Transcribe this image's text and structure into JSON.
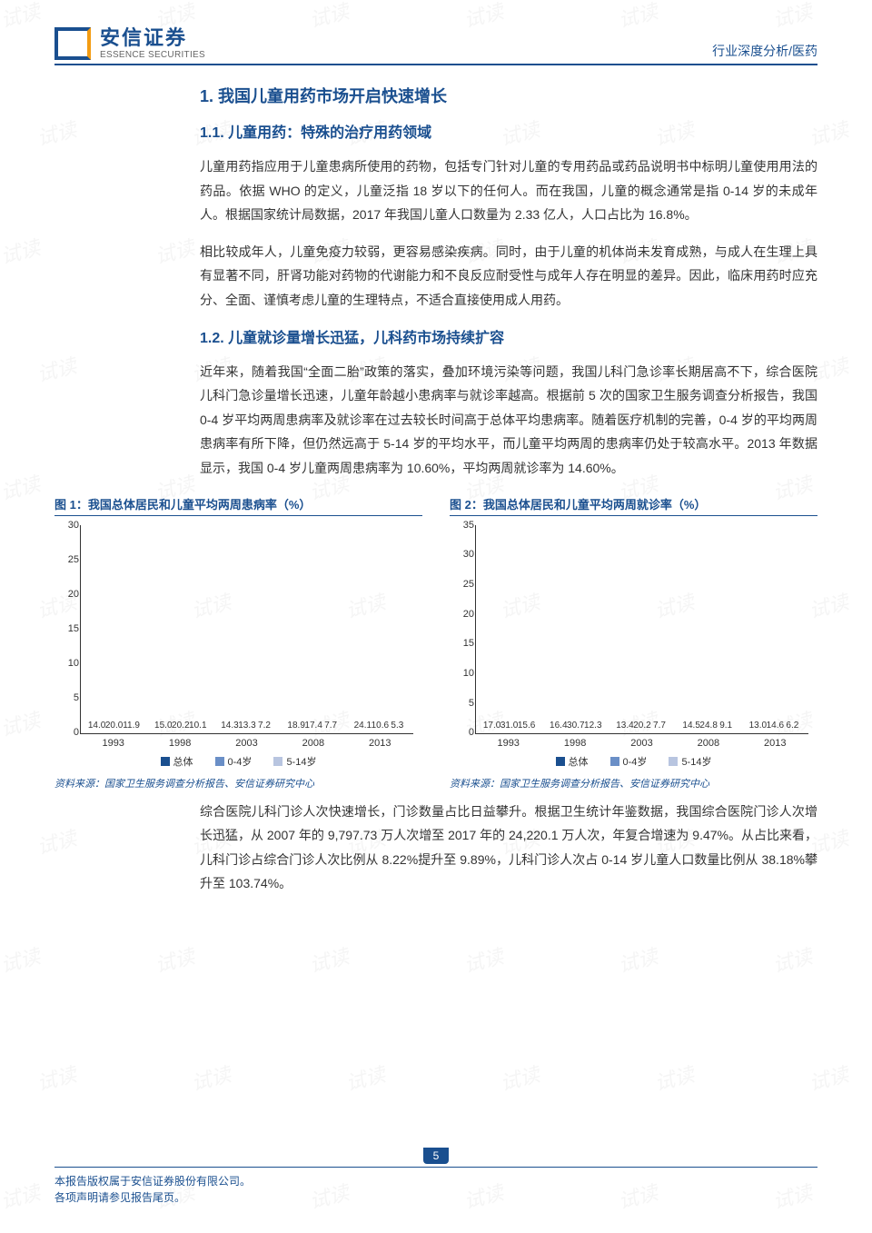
{
  "header": {
    "logo_cn": "安信证券",
    "logo_en": "ESSENCE SECURITIES",
    "doc_type": "行业深度分析/医药"
  },
  "section1": {
    "h1": "1. 我国儿童用药市场开启快速增长",
    "h2_1": "1.1. 儿童用药：特殊的治疗用药领域",
    "p1": "儿童用药指应用于儿童患病所使用的药物，包括专门针对儿童的专用药品或药品说明书中标明儿童使用用法的药品。依据 WHO 的定义，儿童泛指 18 岁以下的任何人。而在我国，儿童的概念通常是指 0-14 岁的未成年人。根据国家统计局数据，2017 年我国儿童人口数量为 2.33 亿人，人口占比为 16.8%。",
    "p2": "相比较成年人，儿童免疫力较弱，更容易感染疾病。同时，由于儿童的机体尚未发育成熟，与成人在生理上具有显著不同，肝肾功能对药物的代谢能力和不良反应耐受性与成年人存在明显的差异。因此，临床用药时应充分、全面、谨慎考虑儿童的生理特点，不适合直接使用成人用药。",
    "h2_2": "1.2. 儿童就诊量增长迅猛，儿科药市场持续扩容",
    "p3": "近年来，随着我国“全面二胎”政策的落实，叠加环境污染等问题，我国儿科门急诊率长期居高不下，综合医院儿科门急诊量增长迅速，儿童年龄越小患病率与就诊率越高。根据前 5 次的国家卫生服务调查分析报告，我国 0-4 岁平均两周患病率及就诊率在过去较长时间高于总体平均患病率。随着医疗机制的完善，0-4 岁的平均两周患病率有所下降，但仍然远高于 5-14 岁的平均水平，而儿童平均两周的患病率仍处于较高水平。2013 年数据显示，我国 0-4 岁儿童两周患病率为 10.60%，平均两周就诊率为 14.60%。",
    "p4": "综合医院儿科门诊人次快速增长，门诊数量占比日益攀升。根据卫生统计年鉴数据，我国综合医院门诊人次增长迅猛，从 2007 年的 9,797.73 万人次增至 2017 年的 24,220.1 万人次，年复合增速为 9.47%。从占比来看，儿科门诊占综合门诊人次比例从 8.22%提升至 9.89%，儿科门诊人次占 0-14 岁儿童人口数量比例从 38.18%攀升至 103.74%。"
  },
  "chart1": {
    "title": "图 1：我国总体居民和儿童平均两周患病率（%）",
    "ymax": 30,
    "ytick_step": 5,
    "categories": [
      "1993",
      "1998",
      "2003",
      "2008",
      "2013"
    ],
    "series": [
      {
        "name": "总体",
        "color": "#1a4f8f",
        "values": [
          14.0,
          15.0,
          14.3,
          18.9,
          24.1
        ]
      },
      {
        "name": "0-4岁",
        "color": "#6a8fc7",
        "values": [
          20.0,
          20.2,
          13.3,
          17.4,
          10.6
        ]
      },
      {
        "name": "5-14岁",
        "color": "#b8c5e0",
        "values": [
          11.9,
          10.1,
          7.2,
          7.7,
          5.3
        ]
      }
    ],
    "source": "资料来源：国家卫生服务调查分析报告、安信证券研究中心"
  },
  "chart2": {
    "title": "图 2：我国总体居民和儿童平均两周就诊率（%）",
    "ymax": 35,
    "ytick_step": 5,
    "categories": [
      "1993",
      "1998",
      "2003",
      "2008",
      "2013"
    ],
    "series": [
      {
        "name": "总体",
        "color": "#1a4f8f",
        "values": [
          17.0,
          16.4,
          13.4,
          14.5,
          13.0
        ]
      },
      {
        "name": "0-4岁",
        "color": "#6a8fc7",
        "values": [
          31.0,
          30.7,
          20.2,
          24.8,
          14.6
        ]
      },
      {
        "name": "5-14岁",
        "color": "#b8c5e0",
        "values": [
          15.6,
          12.3,
          7.7,
          9.1,
          6.2
        ]
      }
    ],
    "source": "资料来源：国家卫生服务调查分析报告、安信证券研究中心"
  },
  "legend_prefix": "■",
  "footer": {
    "line1": "本报告版权属于安信证券股份有限公司。",
    "line2": "各项声明请参见报告尾页。",
    "page": "5"
  },
  "watermark_text": "试读"
}
